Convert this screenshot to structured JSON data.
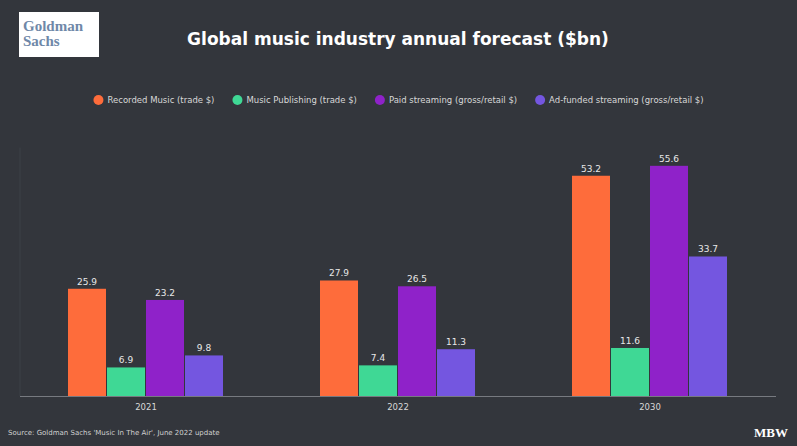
{
  "chart_data": {
    "type": "bar",
    "title": "Global music industry annual forecast ($bn)",
    "source": "Source: Goldman Sachs 'Music In The Air', June 2022 update",
    "categories": [
      "2021",
      "2022",
      "2030"
    ],
    "series": [
      {
        "name": "Recorded Music (trade $)",
        "color": "#fe6c3b",
        "values": [
          25.9,
          27.9,
          53.2
        ]
      },
      {
        "name": "Music Publishing (trade $)",
        "color": "#3fd895",
        "values": [
          6.9,
          7.4,
          11.6
        ]
      },
      {
        "name": "Paid streaming (gross/retail $)",
        "color": "#8f22c9",
        "values": [
          23.2,
          26.5,
          55.6
        ]
      },
      {
        "name": "Ad-funded streaming (gross/retail $)",
        "color": "#7456e0",
        "values": [
          9.8,
          11.3,
          33.7
        ]
      }
    ],
    "ylim": [
      0,
      60
    ],
    "grid": false,
    "legend": "top",
    "data_labels": true,
    "tick_labels": "x"
  },
  "branding": {
    "logo": [
      "Goldman",
      "Sachs"
    ],
    "brand": "MBW"
  }
}
